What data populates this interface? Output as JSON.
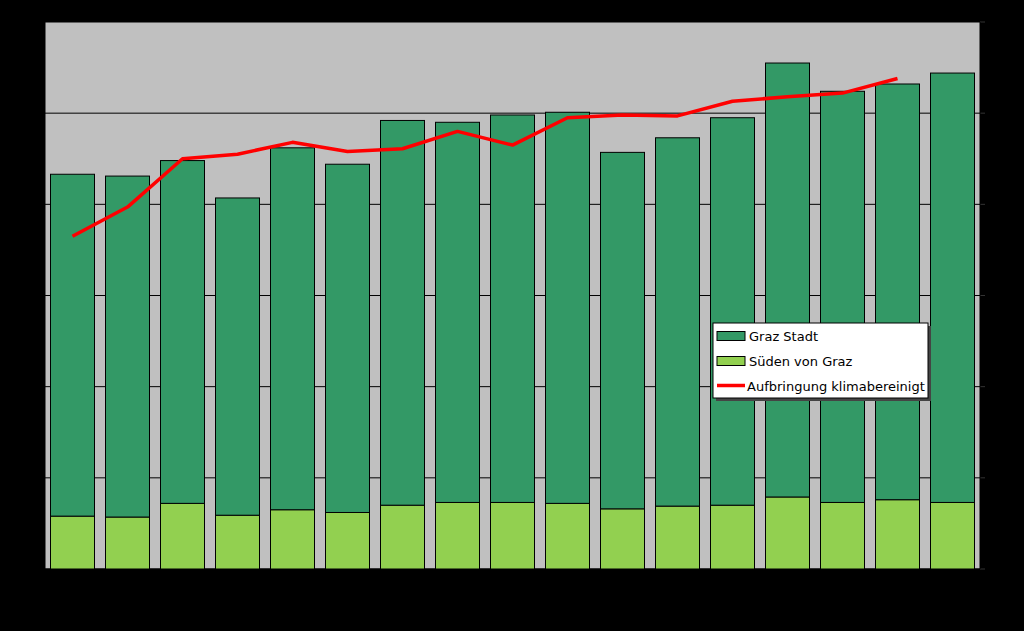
{
  "chart_data": {
    "type": "bar",
    "stacked": true,
    "grid": true,
    "tick_labels": false,
    "legend": "right",
    "categories": [
      null,
      null,
      null,
      null,
      null,
      null,
      null,
      null,
      null,
      null,
      null,
      null,
      null,
      null,
      null,
      null,
      null
    ],
    "ylim": [
      0,
      6
    ],
    "yticks": [
      0,
      1,
      2,
      3,
      4,
      5,
      6
    ],
    "series": [
      {
        "name": "Süden von Graz",
        "color": "#92d050",
        "values": [
          0.58,
          0.57,
          0.72,
          0.59,
          0.65,
          0.62,
          0.7,
          0.73,
          0.73,
          0.72,
          0.66,
          0.69,
          0.7,
          0.79,
          0.73,
          0.76,
          0.73
        ]
      },
      {
        "name": "Graz Stadt",
        "color": "#339966",
        "values": [
          3.75,
          3.74,
          3.76,
          3.48,
          3.97,
          3.82,
          4.22,
          4.17,
          4.25,
          4.29,
          3.91,
          4.04,
          4.25,
          4.76,
          4.51,
          4.56,
          4.71
        ]
      },
      {
        "name": "Aufbringung klimabereinigt",
        "type": "line",
        "color": "#ff0000",
        "values": [
          3.65,
          3.97,
          4.5,
          4.55,
          4.68,
          4.58,
          4.61,
          4.8,
          4.65,
          4.95,
          4.98,
          4.97,
          5.13,
          5.18,
          5.22,
          5.38,
          null
        ]
      }
    ]
  }
}
